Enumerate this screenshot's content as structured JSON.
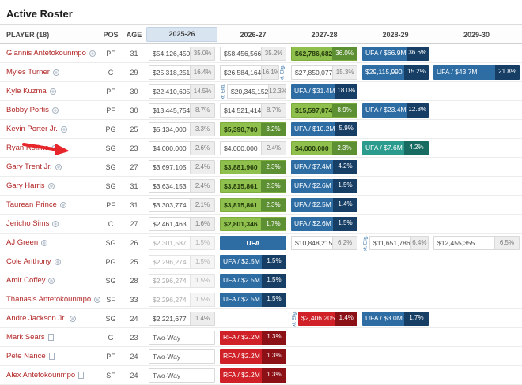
{
  "title": "Active Roster",
  "table": {
    "headers": [
      {
        "label": "PLAYER (18)",
        "key": "player",
        "selected": false
      },
      {
        "label": "POS",
        "key": "pos",
        "selected": false
      },
      {
        "label": "AGE",
        "key": "age",
        "selected": false
      },
      {
        "label": "2025-26",
        "key": "season-2025-26",
        "selected": true
      },
      {
        "label": "2026-27",
        "key": "season-2026-27",
        "selected": false
      },
      {
        "label": "2027-28",
        "key": "season-2027-28",
        "selected": false
      },
      {
        "label": "2028-29",
        "key": "season-2028-29",
        "selected": false
      },
      {
        "label": "2029-30",
        "key": "season-2029-30",
        "selected": false
      }
    ],
    "rows": [
      {
        "name": "Giannis Antetokounmpo",
        "icon": "circle",
        "pos": "PF",
        "age": "31",
        "years": [
          {
            "type": "plain",
            "value": "$54,126,450",
            "pct": "35.0%"
          },
          {
            "type": "plain",
            "value": "$58,456,566",
            "pct": "35.2%"
          },
          {
            "type": "green",
            "value": "$62,786,682",
            "pct": "36.0%"
          },
          {
            "type": "blue",
            "value": "UFA / $66.9M",
            "pct": "36.6%"
          },
          null
        ],
        "markers": []
      },
      {
        "name": "Myles Turner",
        "icon": "circle",
        "pos": "C",
        "age": "29",
        "years": [
          {
            "type": "plain",
            "value": "$25,318,251",
            "pct": "16.4%"
          },
          {
            "type": "plain",
            "value": "$26,584,164",
            "pct": "16.1%"
          },
          {
            "type": "plain",
            "value": "$27,850,077",
            "pct": "15.3%"
          },
          {
            "type": "blue",
            "value": "$29,115,990",
            "pct": "15.2%"
          },
          {
            "type": "blue",
            "value": "UFA / $43.7M",
            "pct": "21.8%"
          }
        ],
        "markers": [
          {
            "col": 1,
            "side": "right"
          }
        ]
      },
      {
        "name": "Kyle Kuzma",
        "icon": "circle",
        "pos": "PF",
        "age": "30",
        "years": [
          {
            "type": "plain",
            "value": "$22,410,605",
            "pct": "14.5%"
          },
          {
            "type": "plain",
            "value": "$20,345,152",
            "pct": "12.3%"
          },
          {
            "type": "blue",
            "value": "UFA / $31.4M",
            "pct": "18.0%"
          },
          null,
          null
        ],
        "markers": [
          {
            "col": 1,
            "side": "left"
          }
        ]
      },
      {
        "name": "Bobby Portis",
        "icon": "circle",
        "pos": "PF",
        "age": "30",
        "years": [
          {
            "type": "plain",
            "value": "$13,445,754",
            "pct": "8.7%"
          },
          {
            "type": "plain",
            "value": "$14,521,414",
            "pct": "8.7%"
          },
          {
            "type": "green",
            "value": "$15,597,074",
            "pct": "8.9%"
          },
          {
            "type": "blue",
            "value": "UFA / $23.4M",
            "pct": "12.8%"
          },
          null
        ],
        "markers": []
      },
      {
        "name": "Kevin Porter Jr.",
        "icon": "circle",
        "pos": "PG",
        "age": "25",
        "years": [
          {
            "type": "plain",
            "value": "$5,134,000",
            "pct": "3.3%"
          },
          {
            "type": "green",
            "value": "$5,390,700",
            "pct": "3.2%"
          },
          {
            "type": "blue",
            "value": "UFA / $10.2M",
            "pct": "5.9%"
          },
          null,
          null
        ],
        "markers": []
      },
      {
        "name": "Ryan Rollins",
        "icon": "circle",
        "pos": "SG",
        "age": "23",
        "years": [
          {
            "type": "plain",
            "value": "$4,000,000",
            "pct": "2.6%"
          },
          {
            "type": "plain",
            "value": "$4,000,000",
            "pct": "2.4%"
          },
          {
            "type": "green",
            "value": "$4,000,000",
            "pct": "2.3%"
          },
          {
            "type": "teal",
            "value": "UFA / $7.6M",
            "pct": "4.2%"
          },
          null
        ],
        "markers": []
      },
      {
        "name": "Gary Trent Jr.",
        "icon": "circle",
        "pos": "SG",
        "age": "27",
        "years": [
          {
            "type": "plain",
            "value": "$3,697,105",
            "pct": "2.4%"
          },
          {
            "type": "green",
            "value": "$3,881,960",
            "pct": "2.3%"
          },
          {
            "type": "blue",
            "value": "UFA / $7.4M",
            "pct": "4.2%"
          },
          null,
          null
        ],
        "markers": []
      },
      {
        "name": "Gary Harris",
        "icon": "circle",
        "pos": "SG",
        "age": "31",
        "years": [
          {
            "type": "plain",
            "value": "$3,634,153",
            "pct": "2.4%"
          },
          {
            "type": "green",
            "value": "$3,815,861",
            "pct": "2.3%"
          },
          {
            "type": "blue",
            "value": "UFA / $2.6M",
            "pct": "1.5%"
          },
          null,
          null
        ],
        "markers": []
      },
      {
        "name": "Taurean Prince",
        "icon": "circle",
        "pos": "PF",
        "age": "31",
        "years": [
          {
            "type": "plain",
            "value": "$3,303,774",
            "pct": "2.1%"
          },
          {
            "type": "green",
            "value": "$3,815,861",
            "pct": "2.3%"
          },
          {
            "type": "blue",
            "value": "UFA / $2.5M",
            "pct": "1.4%"
          },
          null,
          null
        ],
        "markers": []
      },
      {
        "name": "Jericho Sims",
        "icon": "circle",
        "pos": "C",
        "age": "27",
        "years": [
          {
            "type": "plain",
            "value": "$2,461,463",
            "pct": "1.6%"
          },
          {
            "type": "green",
            "value": "$2,801,346",
            "pct": "1.7%"
          },
          {
            "type": "blue",
            "value": "UFA / $2.6M",
            "pct": "1.5%"
          },
          null,
          null
        ],
        "markers": []
      },
      {
        "name": "AJ Green",
        "icon": "circle",
        "pos": "SG",
        "age": "26",
        "years": [
          {
            "type": "muted",
            "value": "$2,301,587",
            "pct": "1.5%"
          },
          {
            "type": "ufa-solo",
            "value": "UFA"
          },
          {
            "type": "plain",
            "value": "$10,848,215",
            "pct": "6.2%"
          },
          {
            "type": "plain",
            "value": "$11,651,786",
            "pct": "6.4%"
          },
          {
            "type": "plain",
            "value": "$12,455,355",
            "pct": "6.5%"
          }
        ],
        "markers": [
          {
            "col": 3,
            "side": "left"
          }
        ]
      },
      {
        "name": "Cole Anthony",
        "icon": "circle",
        "pos": "PG",
        "age": "25",
        "years": [
          {
            "type": "muted",
            "value": "$2,296,274",
            "pct": "1.5%"
          },
          {
            "type": "blue",
            "value": "UFA / $2.5M",
            "pct": "1.5%"
          },
          null,
          null,
          null
        ],
        "markers": []
      },
      {
        "name": "Amir Coffey",
        "icon": "circle",
        "pos": "SG",
        "age": "28",
        "years": [
          {
            "type": "muted",
            "value": "$2,296,274",
            "pct": "1.5%"
          },
          {
            "type": "blue",
            "value": "UFA / $2.5M",
            "pct": "1.5%"
          },
          null,
          null,
          null
        ],
        "markers": []
      },
      {
        "name": "Thanasis Antetokounmpo",
        "icon": "circle",
        "pos": "SF",
        "age": "33",
        "years": [
          {
            "type": "muted",
            "value": "$2,296,274",
            "pct": "1.5%"
          },
          {
            "type": "blue",
            "value": "UFA / $2.5M",
            "pct": "1.5%"
          },
          null,
          null,
          null
        ],
        "markers": []
      },
      {
        "name": "Andre Jackson Jr.",
        "icon": "circle",
        "pos": "SG",
        "age": "24",
        "years": [
          {
            "type": "plain",
            "value": "$2,221,677",
            "pct": "1.4%"
          },
          null,
          {
            "type": "red",
            "value": "$2,406,205",
            "pct": "1.4%"
          },
          {
            "type": "blue",
            "value": "UFA / $3.0M",
            "pct": "1.7%"
          },
          null
        ],
        "markers": [
          {
            "col": 2,
            "side": "left"
          }
        ]
      },
      {
        "name": "Mark Sears",
        "icon": "doc",
        "pos": "G",
        "age": "23",
        "years": [
          {
            "type": "twoway",
            "value": "Two-Way"
          },
          {
            "type": "red",
            "value": "RFA / $2.2M",
            "pct": "1.3%"
          },
          null,
          null,
          null
        ],
        "markers": []
      },
      {
        "name": "Pete Nance",
        "icon": "doc",
        "pos": "PF",
        "age": "24",
        "years": [
          {
            "type": "twoway",
            "value": "Two-Way"
          },
          {
            "type": "red",
            "value": "RFA / $2.2M",
            "pct": "1.3%"
          },
          null,
          null,
          null
        ],
        "markers": []
      },
      {
        "name": "Alex Antetokounmpo",
        "icon": "doc",
        "pos": "SF",
        "age": "24",
        "years": [
          {
            "type": "twoway",
            "value": "Two-Way"
          },
          {
            "type": "red",
            "value": "RFA / $2.2M",
            "pct": "1.3%"
          },
          null,
          null,
          null
        ],
        "markers": []
      }
    ]
  },
  "annotations": {
    "ext_elig_label": "xt. Elig.",
    "arrow_points_to": "Ryan Rollins",
    "arrow_color": "#e8252a"
  },
  "colors": {
    "player_link": "#b22727",
    "selected_year_header_bg": "#d9e4f1",
    "green_cell": "#8fbf4d",
    "green_badge": "#5d8f33",
    "blue_cell": "#2e6da4",
    "blue_badge": "#173f66",
    "teal_cell": "#2a9b8c",
    "teal_badge": "#176b60",
    "red_cell": "#cf2127",
    "red_badge": "#8c1117"
  }
}
